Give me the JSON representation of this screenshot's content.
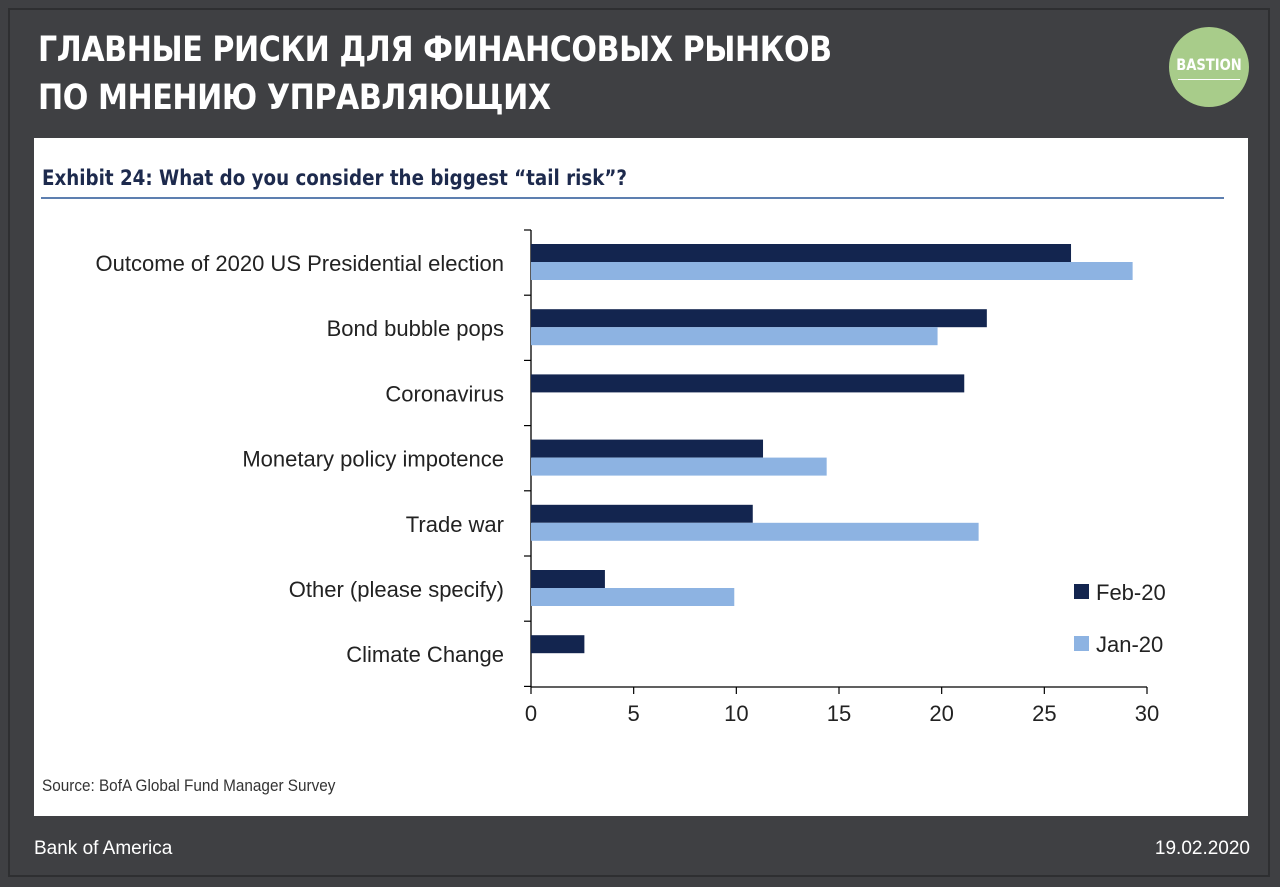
{
  "header": {
    "title_line1": "Главные риски для финансовых рынков",
    "title_line2": "по мнению управляющих",
    "logo_text": "BASTION"
  },
  "exhibit_title": "Exhibit 24: What do you consider the biggest “tail risk”?",
  "source": "Source:  BofA Global Fund Manager Survey",
  "footer": {
    "left": "Bank of America",
    "right": "19.02.2020"
  },
  "colors": {
    "feb": "#13254f",
    "jan": "#8db3e2",
    "background": "#3f4043",
    "logo": "#a8cc8a"
  },
  "chart_data": {
    "type": "bar",
    "orientation": "horizontal",
    "categories": [
      "Outcome of 2020 US Presidential election",
      "Bond bubble pops",
      "Coronavirus",
      "Monetary policy impotence",
      "Trade war",
      "Other (please specify)",
      "Climate Change"
    ],
    "series": [
      {
        "name": "Feb-20",
        "values": [
          26.3,
          22.2,
          21.1,
          11.3,
          10.8,
          3.6,
          2.6
        ]
      },
      {
        "name": "Jan-20",
        "values": [
          29.3,
          19.8,
          null,
          14.4,
          21.8,
          9.9,
          null
        ]
      }
    ],
    "xlim": [
      0,
      30
    ],
    "xticks": [
      0,
      5,
      10,
      15,
      20,
      25,
      30
    ],
    "title": "Exhibit 24: What do you consider the biggest “tail risk”?",
    "xlabel": "",
    "ylabel": "",
    "legend": "bottom-right"
  }
}
